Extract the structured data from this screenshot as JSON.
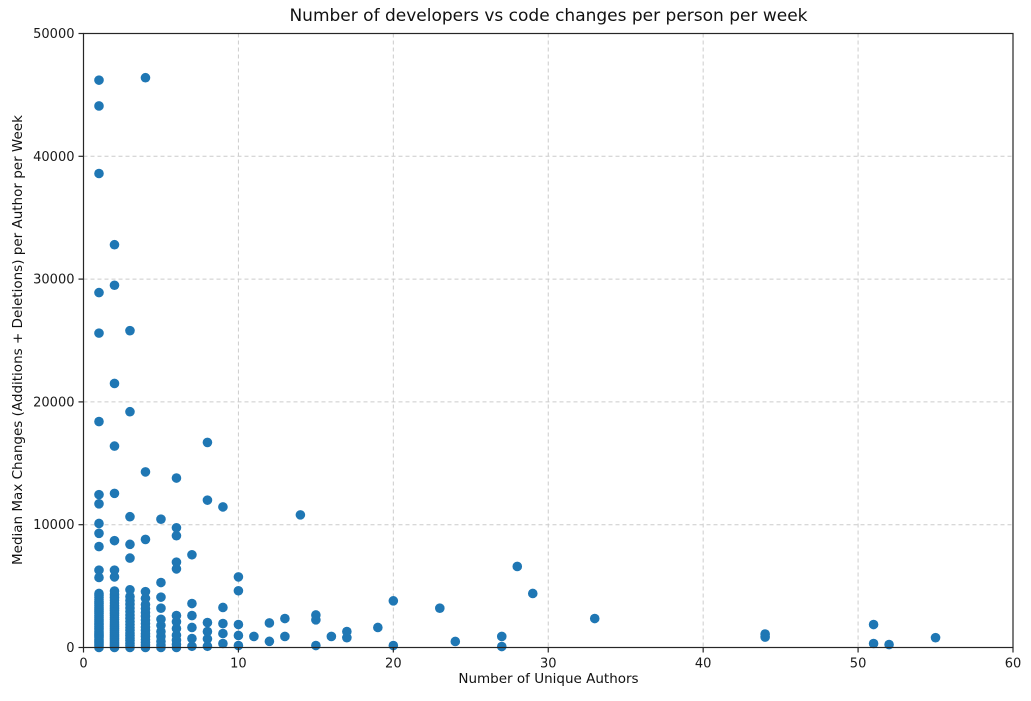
{
  "chart_data": {
    "type": "scatter",
    "title": "Number of developers vs code changes per person per week",
    "xlabel": "Number of Unique Authors",
    "ylabel": "Median Max Changes (Additions + Deletions) per Author per Week",
    "xlim": [
      0,
      60
    ],
    "ylim": [
      0,
      50000
    ],
    "x_ticks": [
      0,
      10,
      20,
      30,
      40,
      50,
      60
    ],
    "y_ticks": [
      0,
      10000,
      20000,
      30000,
      40000,
      50000
    ],
    "grid": true,
    "grid_style": "dashed",
    "legend_position": "none",
    "colors": {
      "point": "#1f77b4",
      "grid": "#cccccc",
      "spine": "#262626",
      "text": "#1a1a1a",
      "background": "#ffffff"
    },
    "points": [
      [
        1,
        0
      ],
      [
        1,
        130
      ],
      [
        1,
        260
      ],
      [
        1,
        390
      ],
      [
        1,
        520
      ],
      [
        1,
        650
      ],
      [
        1,
        780
      ],
      [
        1,
        910
      ],
      [
        1,
        1040
      ],
      [
        1,
        1170
      ],
      [
        1,
        1300
      ],
      [
        1,
        1440
      ],
      [
        1,
        1580
      ],
      [
        1,
        1720
      ],
      [
        1,
        1860
      ],
      [
        1,
        2000
      ],
      [
        1,
        2150
      ],
      [
        1,
        2300
      ],
      [
        1,
        2450
      ],
      [
        1,
        2600
      ],
      [
        1,
        2760
      ],
      [
        1,
        2920
      ],
      [
        1,
        3080
      ],
      [
        1,
        3240
      ],
      [
        1,
        3400
      ],
      [
        1,
        3570
      ],
      [
        1,
        3740
      ],
      [
        1,
        3910
      ],
      [
        1,
        4080
      ],
      [
        1,
        4250
      ],
      [
        1,
        4400
      ],
      [
        1,
        5700
      ],
      [
        1,
        6300
      ],
      [
        1,
        8220
      ],
      [
        1,
        9300
      ],
      [
        1,
        10100
      ],
      [
        1,
        11700
      ],
      [
        1,
        12450
      ],
      [
        1,
        18400
      ],
      [
        1,
        25600
      ],
      [
        1,
        28900
      ],
      [
        1,
        38600
      ],
      [
        1,
        44100
      ],
      [
        1,
        46200
      ],
      [
        2,
        0
      ],
      [
        2,
        150
      ],
      [
        2,
        300
      ],
      [
        2,
        450
      ],
      [
        2,
        600
      ],
      [
        2,
        760
      ],
      [
        2,
        920
      ],
      [
        2,
        1080
      ],
      [
        2,
        1240
      ],
      [
        2,
        1400
      ],
      [
        2,
        1570
      ],
      [
        2,
        1740
      ],
      [
        2,
        1910
      ],
      [
        2,
        2080
      ],
      [
        2,
        2260
      ],
      [
        2,
        2440
      ],
      [
        2,
        2620
      ],
      [
        2,
        2800
      ],
      [
        2,
        3000
      ],
      [
        2,
        3200
      ],
      [
        2,
        3400
      ],
      [
        2,
        3620
      ],
      [
        2,
        3840
      ],
      [
        2,
        4060
      ],
      [
        2,
        4300
      ],
      [
        2,
        4600
      ],
      [
        2,
        5750
      ],
      [
        2,
        6300
      ],
      [
        2,
        8700
      ],
      [
        2,
        12550
      ],
      [
        2,
        16400
      ],
      [
        2,
        21500
      ],
      [
        2,
        29500
      ],
      [
        2,
        32800
      ],
      [
        3,
        0
      ],
      [
        3,
        170
      ],
      [
        3,
        360
      ],
      [
        3,
        560
      ],
      [
        3,
        760
      ],
      [
        3,
        970
      ],
      [
        3,
        1180
      ],
      [
        3,
        1400
      ],
      [
        3,
        1630
      ],
      [
        3,
        1870
      ],
      [
        3,
        2120
      ],
      [
        3,
        2380
      ],
      [
        3,
        2650
      ],
      [
        3,
        2930
      ],
      [
        3,
        3220
      ],
      [
        3,
        3520
      ],
      [
        3,
        3830
      ],
      [
        3,
        4150
      ],
      [
        3,
        4700
      ],
      [
        3,
        7280
      ],
      [
        3,
        8400
      ],
      [
        3,
        10650
      ],
      [
        3,
        19200
      ],
      [
        3,
        25800
      ],
      [
        4,
        0
      ],
      [
        4,
        200
      ],
      [
        4,
        420
      ],
      [
        4,
        650
      ],
      [
        4,
        890
      ],
      [
        4,
        1140
      ],
      [
        4,
        1400
      ],
      [
        4,
        1670
      ],
      [
        4,
        1950
      ],
      [
        4,
        2240
      ],
      [
        4,
        2540
      ],
      [
        4,
        2850
      ],
      [
        4,
        3170
      ],
      [
        4,
        3500
      ],
      [
        4,
        4000
      ],
      [
        4,
        4550
      ],
      [
        4,
        8800
      ],
      [
        4,
        14300
      ],
      [
        4,
        46400
      ],
      [
        5,
        0
      ],
      [
        5,
        200
      ],
      [
        5,
        500
      ],
      [
        5,
        900
      ],
      [
        5,
        1300
      ],
      [
        5,
        1800
      ],
      [
        5,
        2300
      ],
      [
        5,
        3200
      ],
      [
        5,
        4100
      ],
      [
        5,
        5290
      ],
      [
        5,
        10450
      ],
      [
        6,
        0
      ],
      [
        6,
        250
      ],
      [
        6,
        600
      ],
      [
        6,
        1000
      ],
      [
        6,
        1550
      ],
      [
        6,
        2100
      ],
      [
        6,
        2600
      ],
      [
        6,
        6400
      ],
      [
        6,
        6950
      ],
      [
        6,
        9100
      ],
      [
        6,
        9750
      ],
      [
        6,
        13800
      ],
      [
        7,
        100
      ],
      [
        7,
        730
      ],
      [
        7,
        1630
      ],
      [
        7,
        2600
      ],
      [
        7,
        3580
      ],
      [
        7,
        7550
      ],
      [
        8,
        100
      ],
      [
        8,
        700
      ],
      [
        8,
        1300
      ],
      [
        8,
        2030
      ],
      [
        8,
        12000
      ],
      [
        8,
        16700
      ],
      [
        9,
        325
      ],
      [
        9,
        1140
      ],
      [
        9,
        1950
      ],
      [
        9,
        3260
      ],
      [
        9,
        11450
      ],
      [
        10,
        160
      ],
      [
        10,
        980
      ],
      [
        10,
        1870
      ],
      [
        10,
        4620
      ],
      [
        10,
        5750
      ],
      [
        11,
        900
      ],
      [
        12,
        500
      ],
      [
        12,
        2000
      ],
      [
        13,
        900
      ],
      [
        13,
        2360
      ],
      [
        14,
        10800
      ],
      [
        15,
        160
      ],
      [
        15,
        2250
      ],
      [
        15,
        2650
      ],
      [
        16,
        900
      ],
      [
        17,
        800
      ],
      [
        17,
        1300
      ],
      [
        19,
        1630
      ],
      [
        20,
        160
      ],
      [
        20,
        3800
      ],
      [
        23,
        3200
      ],
      [
        24,
        490
      ],
      [
        27,
        80
      ],
      [
        27,
        900
      ],
      [
        28,
        6600
      ],
      [
        29,
        4400
      ],
      [
        33,
        2360
      ],
      [
        44,
        850
      ],
      [
        44,
        1100
      ],
      [
        51,
        325
      ],
      [
        51,
        1870
      ],
      [
        52,
        240
      ],
      [
        55,
        800
      ]
    ]
  }
}
